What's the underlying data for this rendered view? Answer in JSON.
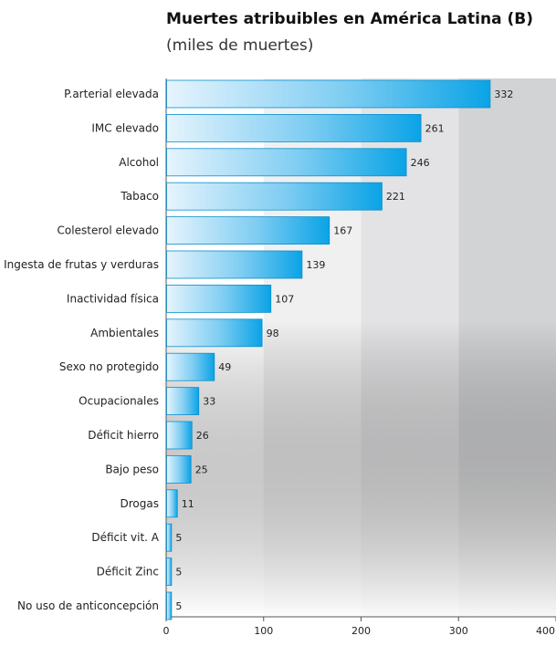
{
  "chart_data": {
    "type": "bar",
    "orientation": "horizontal",
    "title": "Muertes atribuibles en América Latina (B)",
    "subtitle": "(miles de muertes)",
    "categories": [
      "P.arterial elevada",
      "IMC elevado",
      "Alcohol",
      "Tabaco",
      "Colesterol elevado",
      "Ingesta de frutas y verduras",
      "Inactividad física",
      "Ambientales",
      "Sexo no protegido",
      "Ocupacionales",
      "Déficit hierro",
      "Bajo peso",
      "Drogas",
      "Déficit vit. A",
      "Déficit Zinc",
      "No uso de anticoncepción"
    ],
    "values": [
      332,
      261,
      246,
      221,
      167,
      139,
      107,
      98,
      49,
      33,
      26,
      25,
      11,
      5,
      5,
      5
    ],
    "xlim": [
      0,
      400
    ],
    "xticks": [
      0,
      100,
      200,
      300,
      400
    ],
    "colors": {
      "bar_start": "#e6f4fd",
      "bar_end": "#0aa3e6",
      "bar_border": "#0b8fcb"
    }
  }
}
